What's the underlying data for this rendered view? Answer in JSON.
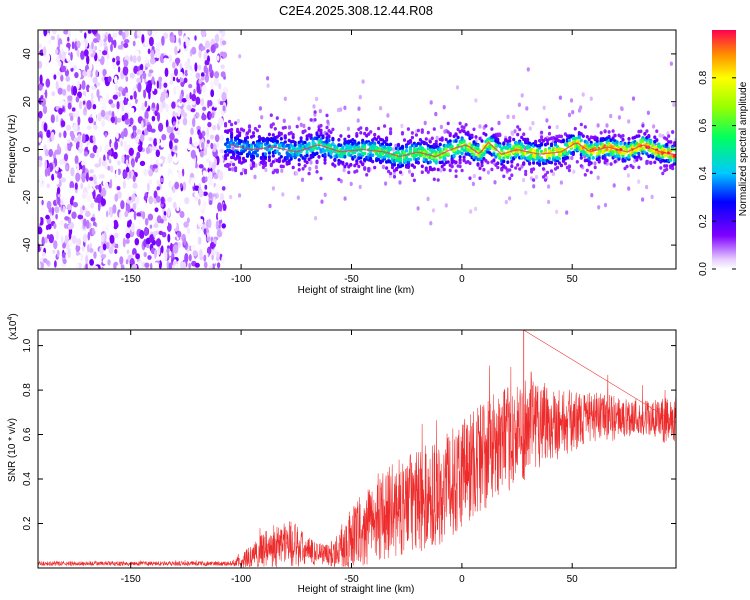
{
  "title": "C2E4.2025.308.12.44.R08",
  "chart_data": [
    {
      "type": "heatmap",
      "name": "spectrogram",
      "xlabel": "Height of straight line (km)",
      "ylabel": "Frequency (Hz)",
      "xlim": [
        -192,
        97
      ],
      "ylim": [
        -50,
        50
      ],
      "xticks": [
        -150,
        -100,
        -50,
        0,
        50
      ],
      "yticks": [
        -40,
        -20,
        0,
        20,
        40
      ],
      "colorbar": {
        "label": "Normalized spectral amplitude",
        "range": [
          0,
          1
        ],
        "ticks": [
          0.0,
          0.2,
          0.4,
          0.6,
          0.8
        ],
        "tick_labels": [
          "0.0",
          "0.2",
          "0.4",
          "0.6",
          "0.8"
        ]
      },
      "noise_region_x": [
        -192,
        -107
      ],
      "signal_region_x": [
        -107,
        97
      ],
      "signal_center_freq_hz": 0,
      "signal_band_halfwidth_hz": 5,
      "ridge": {
        "x": [
          -105,
          -95,
          -85,
          -75,
          -65,
          -55,
          -45,
          -35,
          -28,
          -20,
          -12,
          -5,
          2,
          8,
          12,
          18,
          25,
          35,
          45,
          52,
          58,
          66,
          75,
          82,
          90,
          96
        ],
        "freq": [
          2,
          0,
          1,
          -1,
          2,
          -1,
          0,
          -1,
          -3,
          -1,
          -3,
          0,
          2,
          -2,
          3,
          -2,
          0,
          -2,
          -1,
          3,
          -1,
          1,
          -1,
          2,
          -1,
          -2
        ]
      }
    },
    {
      "type": "line",
      "name": "snr",
      "xlabel": "Height of straight line (km)",
      "ylabel": "SNR (10 * v/v)",
      "y_multiplier_label": "(x10",
      "y_multiplier_exp": "4",
      "y_multiplier_close": ")",
      "xlim": [
        -192,
        97
      ],
      "ylim": [
        0,
        1.07
      ],
      "xticks": [
        -150,
        -100,
        -50,
        0,
        50
      ],
      "yticks": [
        0.2,
        0.4,
        0.6,
        0.8,
        1.0
      ],
      "ytick_labels": [
        "0.2",
        "0.4",
        "0.6",
        "0.8",
        "1.0"
      ],
      "color": "#ee2a2a",
      "envelope": {
        "x": [
          -192,
          -105,
          -100,
          -95,
          -90,
          -85,
          -80,
          -75,
          -70,
          -65,
          -60,
          -55,
          -50,
          -45,
          -40,
          -35,
          -30,
          -25,
          -20,
          -15,
          -10,
          -5,
          0,
          5,
          10,
          15,
          20,
          25,
          30,
          35,
          40,
          45,
          50,
          55,
          60,
          65,
          70,
          75,
          80,
          85,
          90,
          97
        ],
        "mean": [
          0.02,
          0.02,
          0.03,
          0.05,
          0.08,
          0.1,
          0.12,
          0.1,
          0.07,
          0.07,
          0.06,
          0.09,
          0.13,
          0.17,
          0.21,
          0.24,
          0.26,
          0.29,
          0.3,
          0.32,
          0.34,
          0.38,
          0.43,
          0.47,
          0.51,
          0.55,
          0.57,
          0.6,
          0.64,
          0.67,
          0.66,
          0.65,
          0.66,
          0.67,
          0.68,
          0.68,
          0.67,
          0.68,
          0.68,
          0.67,
          0.66,
          0.67
        ],
        "spread": [
          0.01,
          0.01,
          0.03,
          0.06,
          0.08,
          0.1,
          0.11,
          0.1,
          0.07,
          0.05,
          0.05,
          0.1,
          0.14,
          0.17,
          0.18,
          0.2,
          0.22,
          0.22,
          0.24,
          0.24,
          0.24,
          0.24,
          0.26,
          0.26,
          0.26,
          0.24,
          0.24,
          0.22,
          0.24,
          0.22,
          0.18,
          0.16,
          0.14,
          0.12,
          0.11,
          0.11,
          0.1,
          0.09,
          0.09,
          0.09,
          0.1,
          0.1
        ]
      },
      "peak": {
        "x": 28,
        "y": 1.07
      }
    }
  ]
}
